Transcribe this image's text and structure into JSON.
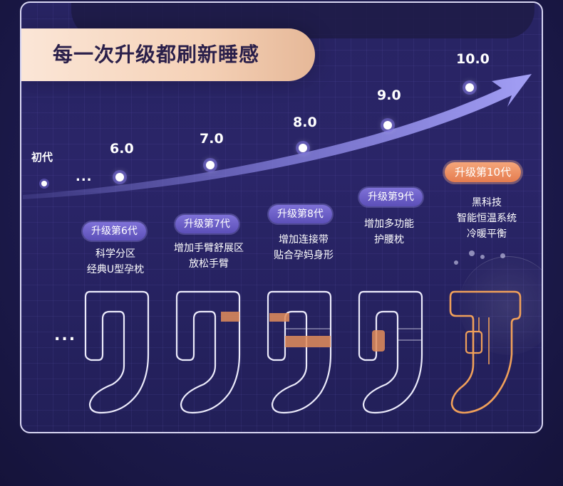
{
  "title": "每一次升级都刷新睡感",
  "versions": [
    {
      "label": "初代",
      "dot": "small"
    },
    {
      "label": "...",
      "dot": "none"
    },
    {
      "label": "6.0"
    },
    {
      "label": "7.0"
    },
    {
      "label": "8.0"
    },
    {
      "label": "9.0"
    },
    {
      "label": "10.0"
    }
  ],
  "generations": [
    {
      "badge": "升级第6代",
      "line1": "科学分区",
      "line2": "经典U型孕枕"
    },
    {
      "badge": "升级第7代",
      "line1": "增加手臂舒展区",
      "line2": "放松手臂"
    },
    {
      "badge": "升级第8代",
      "line1": "增加连接带",
      "line2": "贴合孕妈身形"
    },
    {
      "badge": "升级第9代",
      "line1": "增加多功能",
      "line2": "护腰枕"
    },
    {
      "badge": "升级第10代",
      "line1": "黑科技",
      "line2": "智能恒温系统",
      "line3": "冷暖平衡"
    }
  ],
  "left_ellipsis": "...",
  "colors": {
    "accent_purple": "#7f72d8",
    "accent_orange": "#e57c4f",
    "arrow": "#8f8aea",
    "highlight": "#e38d5a"
  }
}
